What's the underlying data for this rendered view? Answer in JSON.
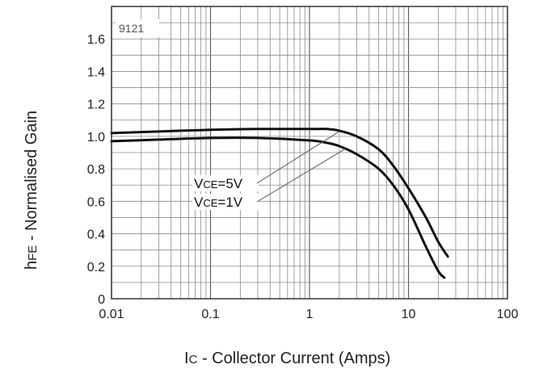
{
  "chart_data": {
    "type": "line",
    "figure_code": "9121",
    "xscale": "log",
    "xlim": [
      0.01,
      100
    ],
    "ylim": [
      0,
      1.8
    ],
    "x_ticks": [
      "0.01",
      "0.1",
      "1",
      "10",
      "100"
    ],
    "y_ticks": [
      "0",
      "0.2",
      "0.4",
      "0.6",
      "0.8",
      "1.0",
      "1.2",
      "1.4",
      "1.6"
    ],
    "y_tick_values": [
      0,
      0.2,
      0.4,
      0.6,
      0.8,
      1.0,
      1.2,
      1.4,
      1.6
    ],
    "x_tick_values": [
      0.01,
      0.1,
      1,
      10,
      100
    ],
    "xlabel": {
      "main": "I",
      "sub": "C",
      "rest": " - Collector Current (Amps)"
    },
    "ylabel": {
      "main": "h",
      "sub": "FE",
      "rest": " - Normalised Gain"
    },
    "grid": true,
    "series": [
      {
        "name": "VCE=5V",
        "label_parts": {
          "main": "V",
          "sub": "CE",
          "rest": "=5V"
        },
        "x": [
          0.01,
          0.03,
          0.1,
          0.3,
          1,
          1.5,
          2,
          3,
          5,
          7,
          10,
          15,
          20,
          25
        ],
        "y": [
          1.02,
          1.03,
          1.04,
          1.045,
          1.045,
          1.045,
          1.035,
          1.0,
          0.92,
          0.82,
          0.68,
          0.5,
          0.35,
          0.26
        ]
      },
      {
        "name": "VCE=1V",
        "label_parts": {
          "main": "V",
          "sub": "CE",
          "rest": "=1V"
        },
        "x": [
          0.01,
          0.03,
          0.1,
          0.3,
          1,
          1.5,
          2,
          3,
          5,
          7,
          10,
          15,
          20,
          23
        ],
        "y": [
          0.97,
          0.98,
          0.99,
          0.99,
          0.975,
          0.96,
          0.94,
          0.89,
          0.8,
          0.7,
          0.55,
          0.32,
          0.17,
          0.13
        ]
      }
    ]
  }
}
